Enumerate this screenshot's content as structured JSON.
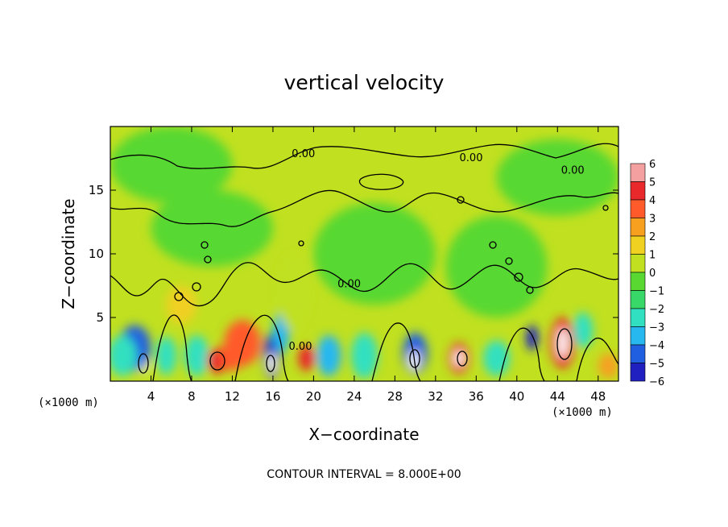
{
  "chart_data": {
    "type": "heatmap",
    "title": "vertical velocity",
    "xlabel": "X−coordinate",
    "ylabel": "Z−coordinate",
    "x_unit_left": "(×1000 m)",
    "x_unit_right": "(×1000 m)",
    "footer": "CONTOUR INTERVAL = 8.000E+00",
    "xlim": [
      0,
      50
    ],
    "ylim": [
      0,
      20
    ],
    "xticks": [
      4,
      8,
      12,
      16,
      20,
      24,
      28,
      32,
      36,
      40,
      44,
      48
    ],
    "xtick_labels": [
      "4",
      "8",
      "12",
      "16",
      "20",
      "24",
      "28",
      "32",
      "36",
      "40",
      "44",
      "48"
    ],
    "yticks": [
      5,
      10,
      15
    ],
    "ytick_labels": [
      "5",
      "10",
      "15"
    ],
    "colorbar": {
      "levels": [
        6,
        5,
        4,
        3,
        2,
        1,
        0,
        -1,
        -2,
        -3,
        -4,
        -5,
        -6
      ],
      "labels": [
        "6",
        "5",
        "4",
        "3",
        "2",
        "1",
        "0",
        "−1",
        "−2",
        "−3",
        "−4",
        "−5",
        "−6"
      ],
      "colors": [
        "#f4a0a0",
        "#e8282a",
        "#ff5a2a",
        "#f7a020",
        "#f0d020",
        "#c0e020",
        "#58d830",
        "#38d868",
        "#30e0c0",
        "#28b8f0",
        "#2060e0",
        "#2020c0",
        "#6010a0"
      ]
    },
    "background_value": 0.3,
    "features": [
      {
        "x": 3.2,
        "z": 1.6,
        "w": 0.7,
        "h": 0.9,
        "value": -7
      },
      {
        "x": 2.4,
        "z": 2.6,
        "w": 1.6,
        "h": 1.8,
        "value": -4
      },
      {
        "x": 1.2,
        "z": 2.0,
        "w": 1.4,
        "h": 1.6,
        "value": -2.5
      },
      {
        "x": 5.5,
        "z": 2.0,
        "w": 1.0,
        "h": 1.5,
        "value": -2
      },
      {
        "x": 8.5,
        "z": 2.0,
        "w": 1.2,
        "h": 1.6,
        "value": -2.5
      },
      {
        "x": 10.5,
        "z": 1.6,
        "w": 1.0,
        "h": 1.0,
        "value": 4.5
      },
      {
        "x": 13.0,
        "z": 3.0,
        "w": 1.8,
        "h": 1.8,
        "value": 4
      },
      {
        "x": 12.0,
        "z": 2.0,
        "w": 1.2,
        "h": 1.2,
        "value": 4
      },
      {
        "x": 15.9,
        "z": 2.0,
        "w": 0.8,
        "h": 1.8,
        "value": -5.5
      },
      {
        "x": 15.9,
        "z": 1.4,
        "w": 0.4,
        "h": 0.8,
        "value": -7
      },
      {
        "x": 16.8,
        "z": 3.8,
        "w": 0.8,
        "h": 1.6,
        "value": -3
      },
      {
        "x": 19.3,
        "z": 1.8,
        "w": 0.8,
        "h": 1.0,
        "value": 5
      },
      {
        "x": 21.5,
        "z": 2.0,
        "w": 1.2,
        "h": 1.6,
        "value": -3.5
      },
      {
        "x": 25.0,
        "z": 2.0,
        "w": 1.3,
        "h": 1.8,
        "value": -2
      },
      {
        "x": 30.0,
        "z": 2.2,
        "w": 1.2,
        "h": 1.6,
        "value": -4.5
      },
      {
        "x": 29.9,
        "z": 1.6,
        "w": 0.5,
        "h": 0.8,
        "value": -7
      },
      {
        "x": 34.3,
        "z": 1.8,
        "w": 1.0,
        "h": 1.2,
        "value": 5
      },
      {
        "x": 34.3,
        "z": 1.8,
        "w": 0.5,
        "h": 0.6,
        "value": 7
      },
      {
        "x": 38.0,
        "z": 1.8,
        "w": 1.3,
        "h": 1.4,
        "value": -2
      },
      {
        "x": 41.5,
        "z": 3.4,
        "w": 0.6,
        "h": 1.0,
        "value": -5
      },
      {
        "x": 44.5,
        "z": 3.0,
        "w": 1.2,
        "h": 2.0,
        "value": 5
      },
      {
        "x": 44.5,
        "z": 3.0,
        "w": 0.5,
        "h": 1.2,
        "value": 7
      },
      {
        "x": 46.5,
        "z": 4.0,
        "w": 1.0,
        "h": 1.4,
        "value": -2
      },
      {
        "x": 49.0,
        "z": 1.2,
        "w": 1.0,
        "h": 1.0,
        "value": 3
      },
      {
        "x": 7.0,
        "z": 6.0,
        "w": 1.5,
        "h": 1.5,
        "value": 1.2
      },
      {
        "x": 18.0,
        "z": 7.0,
        "w": 1.6,
        "h": 3.0,
        "value": 1.0
      },
      {
        "x": 26.0,
        "z": 10.0,
        "w": 6.0,
        "h": 4.0,
        "value": -0.6
      },
      {
        "x": 38.0,
        "z": 9.0,
        "w": 5.0,
        "h": 4.0,
        "value": -0.7
      },
      {
        "x": 10.0,
        "z": 12.0,
        "w": 6.0,
        "h": 3.0,
        "value": -0.5
      },
      {
        "x": 44.0,
        "z": 16.0,
        "w": 6.0,
        "h": 3.0,
        "value": -0.6
      },
      {
        "x": 6.0,
        "z": 17.0,
        "w": 6.0,
        "h": 3.0,
        "value": -0.4
      }
    ],
    "contour_labels": [
      {
        "text": "0.00",
        "x": 19.0,
        "z": 17.9
      },
      {
        "text": "0.00",
        "x": 35.5,
        "z": 17.6
      },
      {
        "text": "0.00",
        "x": 45.5,
        "z": 16.6
      },
      {
        "text": "0.00",
        "x": 23.5,
        "z": 7.7
      },
      {
        "text": "0.00",
        "x": 18.7,
        "z": 2.8
      }
    ]
  }
}
